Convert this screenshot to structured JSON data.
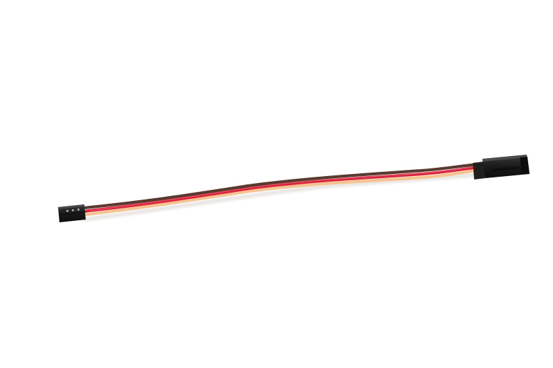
{
  "scene": {
    "subject": "servo-extension-cable",
    "background_color": "#ffffff",
    "wire_colors": {
      "brown": "#5a3a2e",
      "red": "#d8233a",
      "orange": "#f5c38f"
    },
    "connector_color": "#1b1b1b"
  }
}
